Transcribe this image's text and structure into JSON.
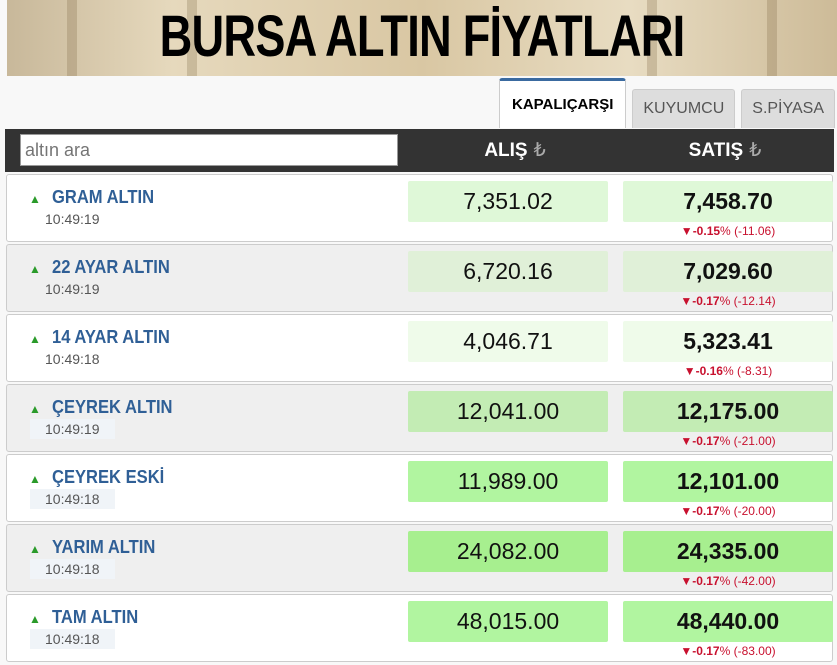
{
  "banner": {
    "title": "BURSA ALTIN FİYATLARI"
  },
  "tabs": [
    {
      "label": "KAPALIÇARŞI",
      "active": true
    },
    {
      "label": "KUYUMCU",
      "active": false
    },
    {
      "label": "S.PİYASA",
      "active": false
    }
  ],
  "header": {
    "search_placeholder": "altın ara",
    "alis": "ALIŞ",
    "satis": "SATIŞ",
    "currency": "₺"
  },
  "rows": [
    {
      "name": "GRAM ALTIN",
      "time": "10:49:19",
      "alis": "7,351.02",
      "satis": "7,458.70",
      "pct": "-0.15",
      "pct_sign": "%",
      "diff": "(-11.06)",
      "alis_bg": "#dff8d8",
      "satis_bg": "#dff8d8",
      "row_bg": "#ffffff"
    },
    {
      "name": "22 AYAR ALTIN",
      "time": "10:49:19",
      "alis": "6,720.16",
      "satis": "7,029.60",
      "pct": "-0.17",
      "pct_sign": "%",
      "diff": "(-12.14)",
      "alis_bg": "#e0f0d8",
      "satis_bg": "#e0f0d8",
      "row_bg": "#efefef"
    },
    {
      "name": "14 AYAR ALTIN",
      "time": "10:49:18",
      "alis": "4,046.71",
      "satis": "5,323.41",
      "pct": "-0.16",
      "pct_sign": "%",
      "diff": "(-8.31)",
      "alis_bg": "#effbea",
      "satis_bg": "#effbea",
      "row_bg": "#ffffff"
    },
    {
      "name": "ÇEYREK ALTIN",
      "time": "10:49:19",
      "alis": "12,041.00",
      "satis": "12,175.00",
      "pct": "-0.17",
      "pct_sign": "%",
      "diff": "(-21.00)",
      "alis_bg": "#c3ecb4",
      "satis_bg": "#c3ecb4",
      "row_bg": "#efefef"
    },
    {
      "name": "ÇEYREK ESKİ",
      "time": "10:49:18",
      "alis": "11,989.00",
      "satis": "12,101.00",
      "pct": "-0.17",
      "pct_sign": "%",
      "diff": "(-20.00)",
      "alis_bg": "#b1f5a0",
      "satis_bg": "#b1f5a0",
      "row_bg": "#ffffff"
    },
    {
      "name": "YARIM ALTIN",
      "time": "10:49:18",
      "alis": "24,082.00",
      "satis": "24,335.00",
      "pct": "-0.17",
      "pct_sign": "%",
      "diff": "(-42.00)",
      "alis_bg": "#a7ef8f",
      "satis_bg": "#a7ef8f",
      "row_bg": "#efefef"
    },
    {
      "name": "TAM ALTIN",
      "time": "10:49:18",
      "alis": "48,015.00",
      "satis": "48,440.00",
      "pct": "-0.17",
      "pct_sign": "%",
      "diff": "(-83.00)",
      "alis_bg": "#b1f5a0",
      "satis_bg": "#b1f5a0",
      "row_bg": "#ffffff"
    }
  ]
}
